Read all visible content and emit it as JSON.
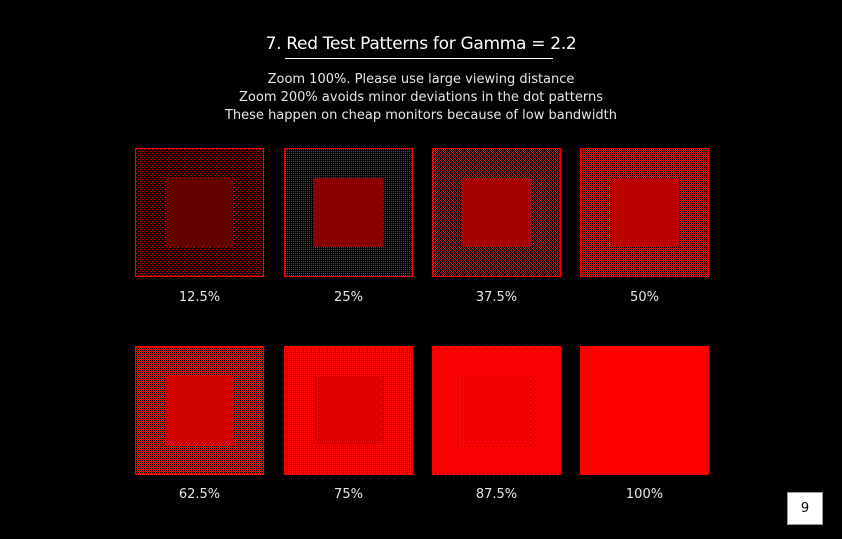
{
  "title": "7. Red Test Patterns for Gamma = 2.2",
  "subtitle_lines": [
    "Zoom 100%. Please use large viewing distance",
    "Zoom 200% avoids minor deviations in the dot patterns",
    "These happen on cheap monitors because of low bandwidth"
  ],
  "gamma": 2.2,
  "pattern_color": "#ff0000",
  "background_color": "#000000",
  "patches": [
    {
      "label": "12.5%",
      "fraction": 0.125
    },
    {
      "label": "25%",
      "fraction": 0.25
    },
    {
      "label": "37.5%",
      "fraction": 0.375
    },
    {
      "label": "50%",
      "fraction": 0.5
    },
    {
      "label": "62.5%",
      "fraction": 0.625
    },
    {
      "label": "75%",
      "fraction": 0.75
    },
    {
      "label": "87.5%",
      "fraction": 0.875
    },
    {
      "label": "100%",
      "fraction": 1.0
    }
  ],
  "page_number": "9"
}
